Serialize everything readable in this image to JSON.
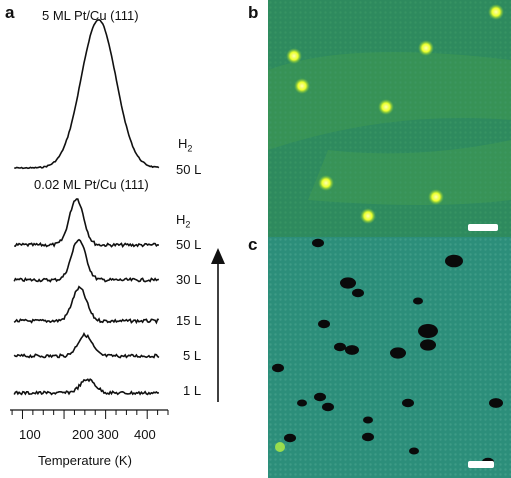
{
  "figure": {
    "panels": {
      "a": "a",
      "b": "b",
      "c": "c"
    }
  },
  "chart_data": {
    "type": "line",
    "xlabel": "Temperature (K)",
    "x_ticks": [
      100,
      200,
      300,
      400
    ],
    "xlim": [
      70,
      450
    ],
    "top_trace": {
      "title": "5 ML Pt/Cu (111)",
      "gas_label": "H",
      "gas_subscript": "2",
      "series": [
        {
          "name": "50 L",
          "peak_K": 283,
          "width_K": 42,
          "relative_height": 1.0
        }
      ]
    },
    "bottom_traces": {
      "title": "0.02 ML Pt/Cu (111)",
      "gas_label": "H",
      "gas_subscript": "2",
      "series": [
        {
          "name": "50 L",
          "peak_K": 230,
          "width_K": 17,
          "relative_height": 0.31
        },
        {
          "name": "30 L",
          "peak_K": 235,
          "width_K": 17,
          "relative_height": 0.27
        },
        {
          "name": "15 L",
          "peak_K": 237,
          "width_K": 17,
          "relative_height": 0.22
        },
        {
          "name": "5 L",
          "peak_K": 250,
          "width_K": 17,
          "relative_height": 0.14
        },
        {
          "name": "1 L",
          "peak_K": 257,
          "width_K": 18,
          "relative_height": 0.09
        }
      ]
    }
  },
  "stm_b": {
    "background": "#2e8a5e",
    "accent": "#f2ff3a"
  },
  "stm_c": {
    "background": "#2c8e7a",
    "accent": "#0a0a0a"
  }
}
